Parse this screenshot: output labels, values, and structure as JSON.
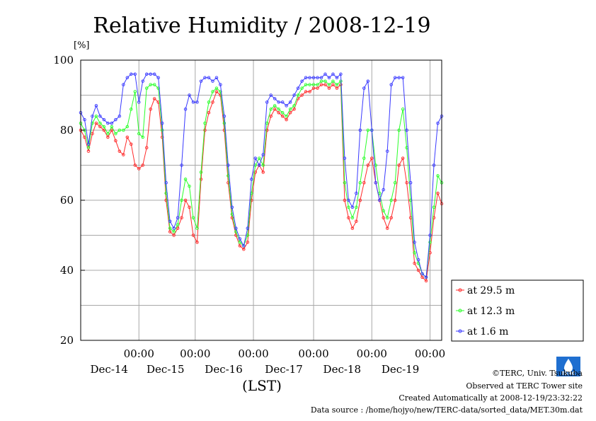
{
  "chart_data": {
    "type": "line",
    "title": "Relative Humidity / 2008-12-19",
    "yunit": "[%]",
    "xlabel": "(LST)",
    "ylim": [
      20,
      100
    ],
    "yticks": [
      20,
      40,
      60,
      80,
      100
    ],
    "ygrid_minor_step": 10,
    "grid": true,
    "legend_position": "bottom-right, outside plot",
    "x_range_hours": [
      -20,
      166
    ],
    "xtick_labels": [
      {
        "time": "00:00",
        "date": "Dec-14",
        "hours": 10
      },
      {
        "time": "00:00",
        "date": "Dec-15",
        "hours": 39
      },
      {
        "time": "00:00",
        "date": "Dec-16",
        "hours": 69
      },
      {
        "time": "00:00",
        "date": "Dec-17",
        "hours": 100
      },
      {
        "time": "00:00",
        "date": "Dec-18",
        "hours": 130
      },
      {
        "time": "00:00",
        "date": "Dec-19",
        "hours": 160
      }
    ],
    "vgrid_hours": [
      10,
      39,
      69,
      100,
      130,
      160
    ],
    "series": [
      {
        "name": "at 29.5 m",
        "color": "#ff2a2a",
        "x": [
          -20,
          -18,
          -16,
          -14,
          -12,
          -10,
          -8,
          -6,
          -4,
          -2,
          0,
          2,
          4,
          6,
          8,
          10,
          12,
          14,
          16,
          18,
          20,
          22,
          24,
          26,
          28,
          30,
          32,
          34,
          36,
          38,
          40,
          42,
          44,
          46,
          48,
          50,
          52,
          54,
          56,
          58,
          60,
          62,
          64,
          66,
          68,
          70,
          72,
          74,
          76,
          78,
          80,
          82,
          84,
          86,
          88,
          90,
          92,
          94,
          96,
          98,
          100,
          102,
          104,
          106,
          108,
          110,
          112,
          114,
          116,
          118,
          120,
          122,
          124,
          126,
          128,
          130,
          132,
          134,
          136,
          138,
          140,
          142,
          144,
          146,
          148,
          150,
          152,
          154,
          156,
          158,
          160,
          162,
          164,
          166
        ],
        "y": [
          80,
          78,
          74,
          79,
          82,
          81,
          80,
          78,
          80,
          77,
          74,
          73,
          78,
          76,
          70,
          69,
          70,
          75,
          86,
          89,
          88,
          78,
          60,
          51,
          50,
          52,
          55,
          60,
          58,
          50,
          48,
          66,
          80,
          85,
          88,
          91,
          90,
          80,
          65,
          55,
          50,
          47,
          46,
          48,
          60,
          68,
          70,
          68,
          80,
          84,
          86,
          85,
          84,
          83,
          85,
          86,
          89,
          90,
          91,
          91,
          92,
          92,
          93,
          93,
          92,
          93,
          92,
          93,
          60,
          55,
          52,
          54,
          60,
          65,
          70,
          72,
          65,
          60,
          55,
          52,
          55,
          60,
          70,
          72,
          65,
          55,
          42,
          40,
          38,
          37,
          45,
          55,
          62,
          59
        ]
      },
      {
        "name": "at 12.3 m",
        "color": "#2aff2a",
        "x": [
          -20,
          -18,
          -16,
          -14,
          -12,
          -10,
          -8,
          -6,
          -4,
          -2,
          0,
          2,
          4,
          6,
          8,
          10,
          12,
          14,
          16,
          18,
          20,
          22,
          24,
          26,
          28,
          30,
          32,
          34,
          36,
          38,
          40,
          42,
          44,
          46,
          48,
          50,
          52,
          54,
          56,
          58,
          60,
          62,
          64,
          66,
          68,
          70,
          72,
          74,
          76,
          78,
          80,
          82,
          84,
          86,
          88,
          90,
          92,
          94,
          96,
          98,
          100,
          102,
          104,
          106,
          108,
          110,
          112,
          114,
          116,
          118,
          120,
          122,
          124,
          126,
          128,
          130,
          132,
          134,
          136,
          138,
          140,
          142,
          144,
          146,
          148,
          150,
          152,
          154,
          156,
          158,
          160,
          162,
          164,
          166
        ],
        "y": [
          82,
          80,
          75,
          82,
          84,
          82,
          81,
          79,
          81,
          79,
          80,
          80,
          81,
          86,
          91,
          79,
          78,
          92,
          93,
          93,
          92,
          80,
          62,
          52,
          51,
          53,
          60,
          66,
          64,
          55,
          52,
          68,
          82,
          88,
          91,
          92,
          91,
          82,
          67,
          56,
          51,
          48,
          47,
          50,
          62,
          70,
          72,
          70,
          82,
          86,
          87,
          86,
          85,
          84,
          86,
          87,
          90,
          92,
          93,
          93,
          93,
          93,
          94,
          94,
          93,
          94,
          93,
          94,
          65,
          58,
          55,
          58,
          65,
          72,
          80,
          80,
          70,
          62,
          57,
          55,
          60,
          65,
          80,
          86,
          75,
          60,
          45,
          42,
          39,
          38,
          48,
          58,
          67,
          65
        ]
      },
      {
        "name": "at 1.6 m",
        "color": "#3a3aff",
        "x": [
          -20,
          -18,
          -16,
          -14,
          -12,
          -10,
          -8,
          -6,
          -4,
          -2,
          0,
          2,
          4,
          6,
          8,
          10,
          12,
          14,
          16,
          18,
          20,
          22,
          24,
          26,
          28,
          30,
          32,
          34,
          36,
          38,
          40,
          42,
          44,
          46,
          48,
          50,
          52,
          54,
          56,
          58,
          60,
          62,
          64,
          66,
          68,
          70,
          72,
          74,
          76,
          78,
          80,
          82,
          84,
          86,
          88,
          90,
          92,
          94,
          96,
          98,
          100,
          102,
          104,
          106,
          108,
          110,
          112,
          114,
          116,
          118,
          120,
          122,
          124,
          126,
          128,
          130,
          132,
          134,
          136,
          138,
          140,
          142,
          144,
          146,
          148,
          150,
          152,
          154,
          156,
          158,
          160,
          162,
          164,
          166
        ],
        "y": [
          85,
          83,
          76,
          84,
          87,
          84,
          83,
          82,
          82,
          83,
          84,
          93,
          95,
          96,
          96,
          88,
          94,
          96,
          96,
          96,
          95,
          82,
          65,
          54,
          52,
          55,
          70,
          86,
          90,
          88,
          88,
          94,
          95,
          95,
          94,
          95,
          93,
          84,
          70,
          58,
          52,
          49,
          47,
          52,
          66,
          72,
          70,
          73,
          88,
          90,
          89,
          88,
          88,
          87,
          88,
          90,
          92,
          94,
          95,
          95,
          95,
          95,
          95,
          96,
          95,
          96,
          95,
          96,
          72,
          60,
          58,
          62,
          80,
          92,
          94,
          80,
          65,
          60,
          63,
          74,
          93,
          95,
          95,
          95,
          80,
          65,
          48,
          43,
          39,
          38,
          50,
          70,
          82,
          84
        ]
      }
    ]
  },
  "footer": {
    "copyright": "©TERC, Univ. Tsukuba",
    "site": "Observed at TERC Tower site",
    "created": "Created Automatically at 2008-12-19/23:32:22",
    "source": "Data source : /home/hojyo/new/TERC-data/sorted_data/MET.30m.dat",
    "logo_text": "TERC"
  }
}
